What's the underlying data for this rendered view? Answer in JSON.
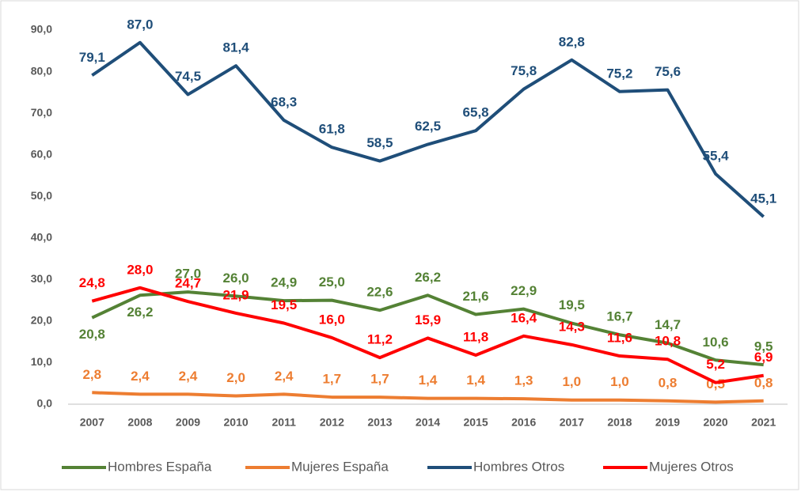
{
  "chart_data": {
    "type": "line",
    "categories": [
      "2007",
      "2008",
      "2009",
      "2010",
      "2011",
      "2012",
      "2013",
      "2014",
      "2015",
      "2016",
      "2017",
      "2018",
      "2019",
      "2020",
      "2021"
    ],
    "series": [
      {
        "name": "Hombres España",
        "color": "#548235",
        "values": [
          20.8,
          26.2,
          27.0,
          26.0,
          24.9,
          25.0,
          22.6,
          26.2,
          21.6,
          22.9,
          19.5,
          16.7,
          14.7,
          10.6,
          9.5
        ],
        "value_labels": [
          "20,8",
          "26,2",
          "27,0",
          "26,0",
          "24,9",
          "25,0",
          "22,6",
          "26,2",
          "21,6",
          "22,9",
          "19,5",
          "16,7",
          "14,7",
          "10,6",
          "9,5"
        ]
      },
      {
        "name": "Mujeres España",
        "color": "#ed7d31",
        "values": [
          2.8,
          2.4,
          2.4,
          2.0,
          2.4,
          1.7,
          1.7,
          1.4,
          1.4,
          1.3,
          1.0,
          1.0,
          0.8,
          0.5,
          0.8
        ],
        "value_labels": [
          "2,8",
          "2,4",
          "2,4",
          "2,0",
          "2,4",
          "1,7",
          "1,7",
          "1,4",
          "1,4",
          "1,3",
          "1,0",
          "1,0",
          "0,8",
          "0,5",
          "0,8"
        ]
      },
      {
        "name": "Hombres Otros",
        "color": "#1f4e79",
        "values": [
          79.1,
          87.0,
          74.5,
          81.4,
          68.3,
          61.8,
          58.5,
          62.5,
          65.8,
          75.8,
          82.8,
          75.2,
          75.6,
          55.4,
          45.1
        ],
        "value_labels": [
          "79,1",
          "87,0",
          "74,5",
          "81,4",
          "68,3",
          "61,8",
          "58,5",
          "62,5",
          "65,8",
          "75,8",
          "82,8",
          "75,2",
          "75,6",
          "55,4",
          "45,1"
        ]
      },
      {
        "name": "Mujeres Otros",
        "color": "#ff0000",
        "values": [
          24.8,
          28.0,
          24.7,
          21.9,
          19.5,
          16.0,
          11.2,
          15.9,
          11.8,
          16.4,
          14.3,
          11.6,
          10.8,
          5.2,
          6.9
        ],
        "value_labels": [
          "24,8",
          "28,0",
          "24,7",
          "21,9",
          "19,5",
          "16,0",
          "11,2",
          "15,9",
          "11,8",
          "16,4",
          "14,3",
          "11,6",
          "10,8",
          "5,2",
          "6,9"
        ]
      }
    ],
    "ylim": [
      0,
      90
    ],
    "yticks": [
      {
        "value": 0,
        "label": "0,0"
      },
      {
        "value": 10,
        "label": "10,0"
      },
      {
        "value": 20,
        "label": "20,0"
      },
      {
        "value": 30,
        "label": "30,0"
      },
      {
        "value": 40,
        "label": "40,0"
      },
      {
        "value": 50,
        "label": "50,0"
      },
      {
        "value": 60,
        "label": "60,0"
      },
      {
        "value": 70,
        "label": "70,0"
      },
      {
        "value": 80,
        "label": "80,0"
      },
      {
        "value": 90,
        "label": "90,0"
      }
    ],
    "grid": false,
    "legend": "bottom"
  }
}
